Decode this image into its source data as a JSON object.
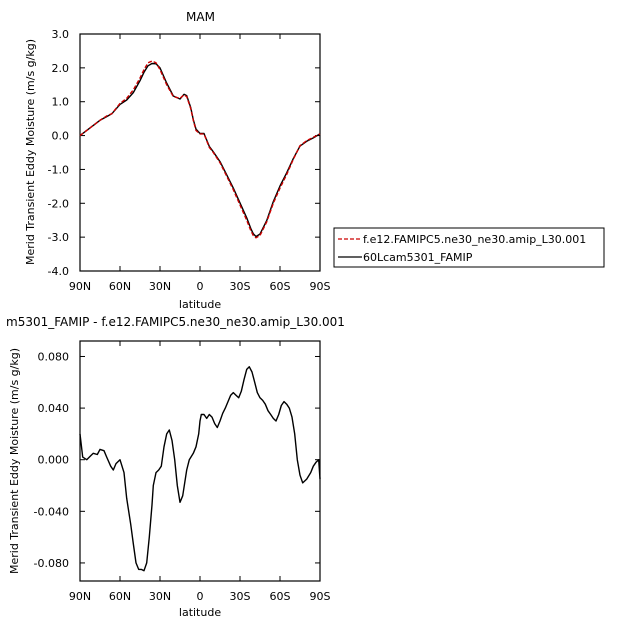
{
  "figure_title": "MAM",
  "legend": {
    "placement": "right of top panel",
    "entries": [
      {
        "label": "f.e12.FAMIPC5.ne30_ne30.amip_L30.001",
        "color": "#cc0000",
        "dash": "dashed"
      },
      {
        "label": "60Lcam5301_FAMIP",
        "color": "#000000",
        "dash": "solid"
      }
    ]
  },
  "chart_data": [
    {
      "type": "line",
      "title": "MAM",
      "xlabel": "latitude",
      "ylabel": "Merid Transient Eddy Moisture (m/s g/kg)",
      "x_ticks": [
        "90N",
        "60N",
        "30N",
        "0",
        "30S",
        "60S",
        "90S"
      ],
      "y_ticks": [
        "3.0",
        "2.0",
        "1.0",
        "0.0",
        "-1.0",
        "-2.0",
        "-3.0",
        "-4.0"
      ],
      "xlim": [
        -90,
        90
      ],
      "ylim": [
        -4.0,
        3.0
      ],
      "x": [
        -90,
        -80,
        -75,
        -70,
        -66,
        -60,
        -55,
        -50,
        -45,
        -42,
        -39,
        -36,
        -33,
        -30,
        -25,
        -20,
        -15,
        -12,
        -10,
        -7,
        -5,
        -3,
        0,
        3,
        7,
        10,
        15,
        20,
        25,
        30,
        35,
        38,
        40,
        42,
        45,
        50,
        55,
        60,
        65,
        70,
        75,
        80,
        85,
        90
      ],
      "series": [
        {
          "name": "f.e12.FAMIPC5.ne30_ne30.amip_L30.001",
          "y": [
            0.0,
            0.3,
            0.45,
            0.58,
            0.65,
            0.95,
            1.1,
            1.35,
            1.7,
            1.95,
            2.15,
            2.2,
            2.15,
            1.95,
            1.5,
            1.15,
            1.1,
            1.2,
            1.15,
            0.8,
            0.45,
            0.15,
            0.05,
            0.05,
            -0.35,
            -0.5,
            -0.8,
            -1.2,
            -1.6,
            -2.05,
            -2.5,
            -2.8,
            -2.95,
            -3.02,
            -2.95,
            -2.55,
            -2.0,
            -1.55,
            -1.15,
            -0.7,
            -0.3,
            -0.15,
            -0.05,
            0.05
          ]
        },
        {
          "name": "60Lcam5301_FAMIP",
          "y": [
            0.0,
            0.3,
            0.45,
            0.56,
            0.65,
            0.92,
            1.05,
            1.27,
            1.62,
            1.87,
            2.06,
            2.13,
            2.12,
            2.0,
            1.55,
            1.17,
            1.08,
            1.22,
            1.18,
            0.83,
            0.47,
            0.19,
            0.06,
            0.06,
            -0.32,
            -0.48,
            -0.77,
            -1.16,
            -1.55,
            -1.99,
            -2.43,
            -2.74,
            -2.9,
            -2.98,
            -2.91,
            -2.51,
            -1.95,
            -1.49,
            -1.1,
            -0.68,
            -0.31,
            -0.17,
            -0.07,
            0.05
          ]
        }
      ]
    },
    {
      "type": "line",
      "title": "m5301_FAMIP - f.e12.FAMIPC5.ne30_ne30.amip_L30.001",
      "xlabel": "latitude",
      "ylabel": "Merid Transient Eddy Moisture (m/s g/kg)",
      "x_ticks": [
        "90N",
        "60N",
        "30N",
        "0",
        "30S",
        "60S",
        "90S"
      ],
      "y_ticks": [
        "0.080",
        "0.040",
        "0.000",
        "-0.040",
        "-0.080"
      ],
      "xlim": [
        -90,
        90
      ],
      "ylim": [
        -0.094,
        0.092
      ],
      "series": [
        {
          "name": "",
          "x": [
            -90,
            -88,
            -85,
            -82,
            -80,
            -77,
            -75,
            -72,
            -70,
            -67,
            -65,
            -63,
            -60,
            -57,
            -55,
            -52,
            -50,
            -48,
            -46,
            -44,
            -42,
            -40,
            -38,
            -36,
            -35,
            -33,
            -31,
            -29,
            -27,
            -25,
            -23,
            -21,
            -19,
            -17,
            -15,
            -13,
            -10,
            -8,
            -5,
            -3,
            -1,
            0,
            1,
            3,
            5,
            7,
            9,
            11,
            13,
            15,
            17,
            19,
            21,
            23,
            25,
            27,
            29,
            31,
            33,
            35,
            37,
            39,
            41,
            43,
            45,
            47,
            49,
            51,
            53,
            55,
            57,
            59,
            61,
            63,
            65,
            67,
            69,
            71,
            73,
            75,
            77,
            80,
            83,
            85,
            87,
            89,
            90
          ],
          "y": [
            0.02,
            0.002,
            0.0,
            0.003,
            0.005,
            0.004,
            0.008,
            0.007,
            0.002,
            -0.005,
            -0.008,
            -0.003,
            0.0,
            -0.01,
            -0.03,
            -0.05,
            -0.065,
            -0.08,
            -0.085,
            -0.085,
            -0.086,
            -0.08,
            -0.06,
            -0.035,
            -0.02,
            -0.01,
            -0.008,
            -0.005,
            0.01,
            0.02,
            0.023,
            0.015,
            0.0,
            -0.02,
            -0.033,
            -0.028,
            -0.008,
            0.0,
            0.005,
            0.01,
            0.02,
            0.03,
            0.035,
            0.035,
            0.032,
            0.035,
            0.033,
            0.028,
            0.025,
            0.03,
            0.036,
            0.04,
            0.045,
            0.05,
            0.052,
            0.05,
            0.048,
            0.053,
            0.062,
            0.07,
            0.072,
            0.068,
            0.06,
            0.052,
            0.048,
            0.046,
            0.043,
            0.038,
            0.035,
            0.032,
            0.03,
            0.035,
            0.042,
            0.045,
            0.043,
            0.04,
            0.033,
            0.02,
            0.0,
            -0.012,
            -0.018,
            -0.015,
            -0.01,
            -0.005,
            -0.002,
            0.0,
            -0.015
          ]
        }
      ]
    }
  ]
}
